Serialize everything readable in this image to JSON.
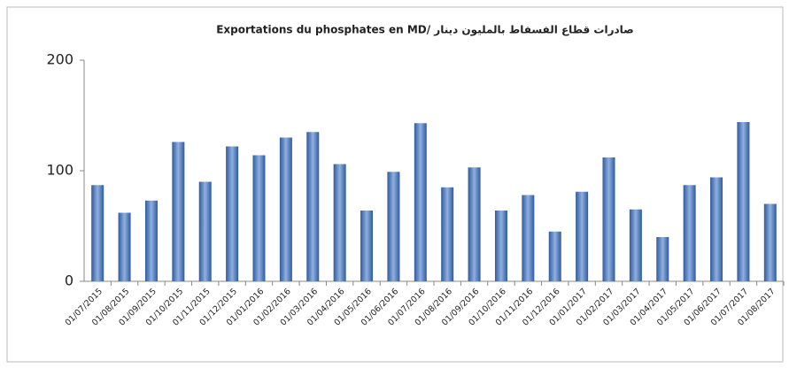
{
  "chart_data": {
    "type": "bar",
    "title": "Exportations du phosphates en MD/ صادرات قطاع الفسفاط بالمليون دينار",
    "categories": [
      "01/07/2015",
      "01/08/2015",
      "01/09/2015",
      "01/10/2015",
      "01/11/2015",
      "01/12/2015",
      "01/01/2016",
      "01/02/2016",
      "01/03/2016",
      "01/04/2016",
      "01/05/2016",
      "01/06/2016",
      "01/07/2016",
      "01/08/2016",
      "01/09/2016",
      "01/10/2016",
      "01/11/2016",
      "01/12/2016",
      "01/01/2017",
      "01/02/2017",
      "01/03/2017",
      "01/04/2017",
      "01/05/2017",
      "01/06/2017",
      "01/07/2017",
      "01/08/2017"
    ],
    "values": [
      87,
      62,
      73,
      126,
      90,
      122,
      114,
      130,
      135,
      106,
      64,
      99,
      143,
      85,
      103,
      64,
      78,
      45,
      81,
      112,
      65,
      40,
      87,
      94,
      144,
      70
    ],
    "color": "#2f5b9c",
    "ylim": [
      0,
      200
    ],
    "yticks": [
      0,
      100,
      200
    ],
    "grid": false
  }
}
